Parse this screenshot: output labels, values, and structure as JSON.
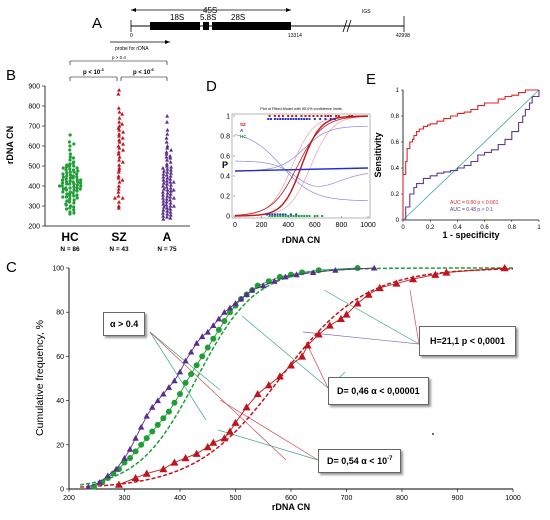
{
  "panel_labels": {
    "a": "A",
    "b": "B",
    "c": "C",
    "d": "D",
    "e": "E"
  },
  "colors": {
    "hc": "#1f9e35",
    "sz": "#c0141c",
    "a": "#5a2d8c",
    "teal": "#3aa78a",
    "roc_sz": "#e0232b",
    "roc_a": "#5a3a9a",
    "blue": "#2030d0"
  },
  "chart_data": [
    {
      "panel": "A",
      "type": "diagram",
      "labels": {
        "s45": "45S",
        "s18": "18S",
        "s58": "5.8S",
        "s28": "28S",
        "igs": "IGS",
        "start": "0",
        "end28": "13314",
        "total": "42998",
        "probe": "probe for rDNA"
      }
    },
    {
      "panel": "B",
      "type": "scatter",
      "ylabel": "rDNA CN",
      "ylim": [
        200,
        900
      ],
      "yticks": [
        200,
        300,
        400,
        500,
        600,
        700,
        800,
        900
      ],
      "categories": [
        "HC",
        "SZ",
        "A"
      ],
      "n_labels": [
        "N = 86",
        "N = 43",
        "N = 75"
      ],
      "sig": {
        "top": "p > 0.4",
        "left": "p < 10",
        "left_exp": "-3",
        "right": "p < 10",
        "right_exp": "-6"
      },
      "series": [
        {
          "name": "HC",
          "values": [
            360,
            370,
            390,
            600,
            580,
            560,
            545,
            530,
            520,
            510,
            500,
            500,
            495,
            490,
            490,
            485,
            480,
            480,
            475,
            470,
            470,
            465,
            460,
            460,
            455,
            450,
            450,
            445,
            440,
            440,
            435,
            430,
            430,
            430,
            425,
            420,
            420,
            420,
            415,
            410,
            410,
            410,
            405,
            400,
            400,
            400,
            395,
            390,
            390,
            385,
            380,
            380,
            375,
            370,
            365,
            360,
            355,
            350,
            350,
            345,
            340,
            335,
            330,
            325,
            320,
            315,
            310,
            300,
            295,
            290,
            280,
            270,
            260,
            620,
            610,
            540,
            515,
            505,
            445,
            415,
            385,
            345,
            305,
            285,
            265,
            655
          ]
        },
        {
          "name": "SZ",
          "values": [
            880,
            860,
            790,
            770,
            760,
            740,
            720,
            700,
            690,
            680,
            670,
            660,
            650,
            640,
            630,
            620,
            610,
            600,
            590,
            580,
            570,
            560,
            545,
            530,
            520,
            505,
            490,
            480,
            470,
            450,
            440,
            430,
            420,
            400,
            385,
            370,
            350,
            340,
            320,
            300,
            290,
            340,
            710
          ]
        },
        {
          "name": "A",
          "values": [
            750,
            720,
            680,
            660,
            640,
            620,
            600,
            590,
            580,
            570,
            560,
            550,
            545,
            540,
            530,
            520,
            510,
            500,
            495,
            490,
            485,
            480,
            475,
            470,
            465,
            460,
            455,
            450,
            445,
            440,
            435,
            430,
            425,
            420,
            415,
            410,
            405,
            400,
            395,
            390,
            385,
            380,
            375,
            370,
            365,
            360,
            355,
            350,
            345,
            340,
            335,
            330,
            325,
            320,
            315,
            310,
            305,
            300,
            295,
            290,
            285,
            280,
            275,
            270,
            265,
            260,
            255,
            250,
            245,
            240,
            235,
            420,
            380,
            340,
            300
          ]
        }
      ]
    },
    {
      "panel": "D",
      "type": "line",
      "title": "Plot of Fitted Model with 95.0% confidence limits",
      "xlabel": "rDNA CN",
      "ylabel": "P",
      "xlim": [
        0,
        1000
      ],
      "ylim": [
        0,
        1
      ],
      "xticks": [
        0,
        200,
        400,
        600,
        800,
        1000
      ],
      "yticks": [
        0,
        0.2,
        0.4,
        0.6,
        0.8,
        1
      ],
      "legend": [
        "SZ",
        "A",
        "HC"
      ],
      "series": [
        {
          "name": "SZ",
          "x": [
            0,
            200,
            300,
            400,
            450,
            500,
            550,
            600,
            700,
            800,
            1000
          ],
          "y": [
            0.01,
            0.03,
            0.08,
            0.22,
            0.35,
            0.5,
            0.65,
            0.78,
            0.92,
            0.97,
            1.0
          ]
        },
        {
          "name": "A",
          "x": [
            0,
            1000
          ],
          "y": [
            0.45,
            0.48
          ]
        }
      ]
    },
    {
      "panel": "E",
      "type": "line",
      "xlabel": "1 - specificity",
      "ylabel": "Sensitivity",
      "xlim": [
        0,
        1
      ],
      "ylim": [
        0,
        1
      ],
      "xticks": [
        0,
        0.2,
        0.4,
        0.6,
        0.8,
        1
      ],
      "yticks": [
        0,
        0.2,
        0.4,
        0.6,
        0.8,
        1
      ],
      "annotations": [
        "AUC = 0.80   p < 0.001",
        "AUC = 0.48   p > 0.1"
      ],
      "series": [
        {
          "name": "SZ",
          "x": [
            0,
            0,
            0.02,
            0.03,
            0.05,
            0.07,
            0.08,
            0.1,
            0.12,
            0.15,
            0.18,
            0.2,
            0.25,
            0.3,
            0.35,
            0.4,
            0.45,
            0.5,
            0.55,
            0.6,
            0.65,
            0.7,
            0.75,
            0.8,
            0.85,
            0.9,
            0.95,
            1.0
          ],
          "y": [
            0,
            0.35,
            0.45,
            0.55,
            0.6,
            0.62,
            0.65,
            0.68,
            0.7,
            0.72,
            0.73,
            0.74,
            0.76,
            0.78,
            0.8,
            0.82,
            0.83,
            0.85,
            0.88,
            0.9,
            0.9,
            0.93,
            0.95,
            0.96,
            0.98,
            1.0,
            1.0,
            1.0
          ]
        },
        {
          "name": "A",
          "x": [
            0,
            0.02,
            0.05,
            0.08,
            0.1,
            0.15,
            0.2,
            0.25,
            0.3,
            0.35,
            0.4,
            0.45,
            0.5,
            0.55,
            0.6,
            0.65,
            0.7,
            0.75,
            0.8,
            0.85,
            0.88,
            0.9,
            0.93,
            0.95,
            1.0
          ],
          "y": [
            0,
            0.1,
            0.2,
            0.25,
            0.28,
            0.32,
            0.34,
            0.36,
            0.37,
            0.38,
            0.4,
            0.42,
            0.45,
            0.5,
            0.52,
            0.54,
            0.58,
            0.62,
            0.68,
            0.75,
            0.8,
            0.85,
            0.9,
            0.95,
            1.0
          ]
        }
      ]
    },
    {
      "panel": "C",
      "type": "line",
      "xlabel": "rDNA CN",
      "ylabel": "Cumulative frequency, %",
      "xlim": [
        200,
        1000
      ],
      "ylim": [
        0,
        100
      ],
      "xticks": [
        200,
        300,
        400,
        500,
        600,
        700,
        800,
        900,
        1000
      ],
      "yticks": [
        0,
        20,
        40,
        60,
        80,
        100
      ],
      "annotations": [
        "α > 0.4",
        "H=21,1    p < 0,0001",
        "D= 0,46  α < 0,00001",
        "D= 0,54  α < 10"
      ],
      "annotation_exp": "-7",
      "series": [
        {
          "name": "HC",
          "x": [
            245,
            260,
            270,
            280,
            290,
            300,
            310,
            320,
            330,
            340,
            350,
            360,
            370,
            380,
            390,
            400,
            410,
            420,
            430,
            440,
            450,
            460,
            470,
            480,
            490,
            500,
            510,
            520,
            530,
            540,
            560,
            580,
            600,
            620,
            650,
            720
          ],
          "y": [
            1,
            3,
            5,
            7,
            9,
            12,
            14,
            17,
            20,
            23,
            26,
            29,
            32,
            35,
            39,
            43,
            48,
            52,
            56,
            60,
            64,
            68,
            72,
            76,
            80,
            83,
            86,
            88,
            90,
            92,
            94,
            96,
            97,
            98,
            99,
            100
          ]
        },
        {
          "name": "A",
          "x": [
            235,
            255,
            270,
            285,
            300,
            310,
            320,
            330,
            340,
            350,
            360,
            370,
            380,
            390,
            400,
            410,
            420,
            430,
            440,
            450,
            460,
            470,
            480,
            490,
            500,
            510,
            520,
            530,
            550,
            570,
            590,
            610,
            640,
            680,
            750
          ],
          "y": [
            1,
            3,
            6,
            9,
            14,
            18,
            23,
            28,
            33,
            37,
            40,
            43,
            46,
            49,
            53,
            58,
            62,
            66,
            69,
            71,
            74,
            77,
            80,
            82,
            84,
            86,
            88,
            90,
            92,
            94,
            96,
            97,
            98,
            99,
            100
          ]
        },
        {
          "name": "SZ",
          "x": [
            290,
            320,
            340,
            370,
            390,
            410,
            430,
            450,
            460,
            480,
            490,
            500,
            520,
            540,
            560,
            580,
            600,
            620,
            630,
            650,
            670,
            690,
            700,
            720,
            740,
            760,
            790,
            820,
            860,
            880,
            985
          ],
          "y": [
            2,
            5,
            7,
            9,
            12,
            14,
            16,
            19,
            21,
            23,
            26,
            30,
            37,
            43,
            47,
            51,
            56,
            60,
            65,
            70,
            74,
            77,
            79,
            84,
            88,
            91,
            93,
            95,
            97,
            98,
            100
          ]
        }
      ]
    }
  ]
}
